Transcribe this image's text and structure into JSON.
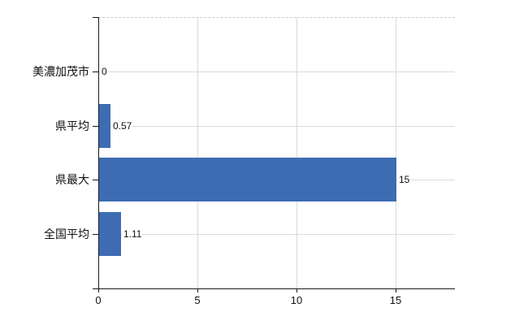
{
  "chart_data": {
    "type": "bar",
    "orientation": "horizontal",
    "categories": [
      "美濃加茂市",
      "県平均",
      "県最大",
      "全国平均"
    ],
    "values": [
      0,
      0.57,
      15,
      1.11
    ],
    "value_labels": [
      "0",
      "0.57",
      "15",
      "1.11"
    ],
    "xlim": [
      0,
      18
    ],
    "x_ticks": [
      0,
      5,
      10,
      15
    ],
    "x_tick_labels": [
      "0",
      "5",
      "10",
      "15"
    ],
    "bar_color": "#3d6cb2",
    "gridline_color": "#d7ddd7",
    "axis_color": "#1a1a1a",
    "grid": true,
    "legend": "none",
    "background_color": "#ffffff"
  }
}
